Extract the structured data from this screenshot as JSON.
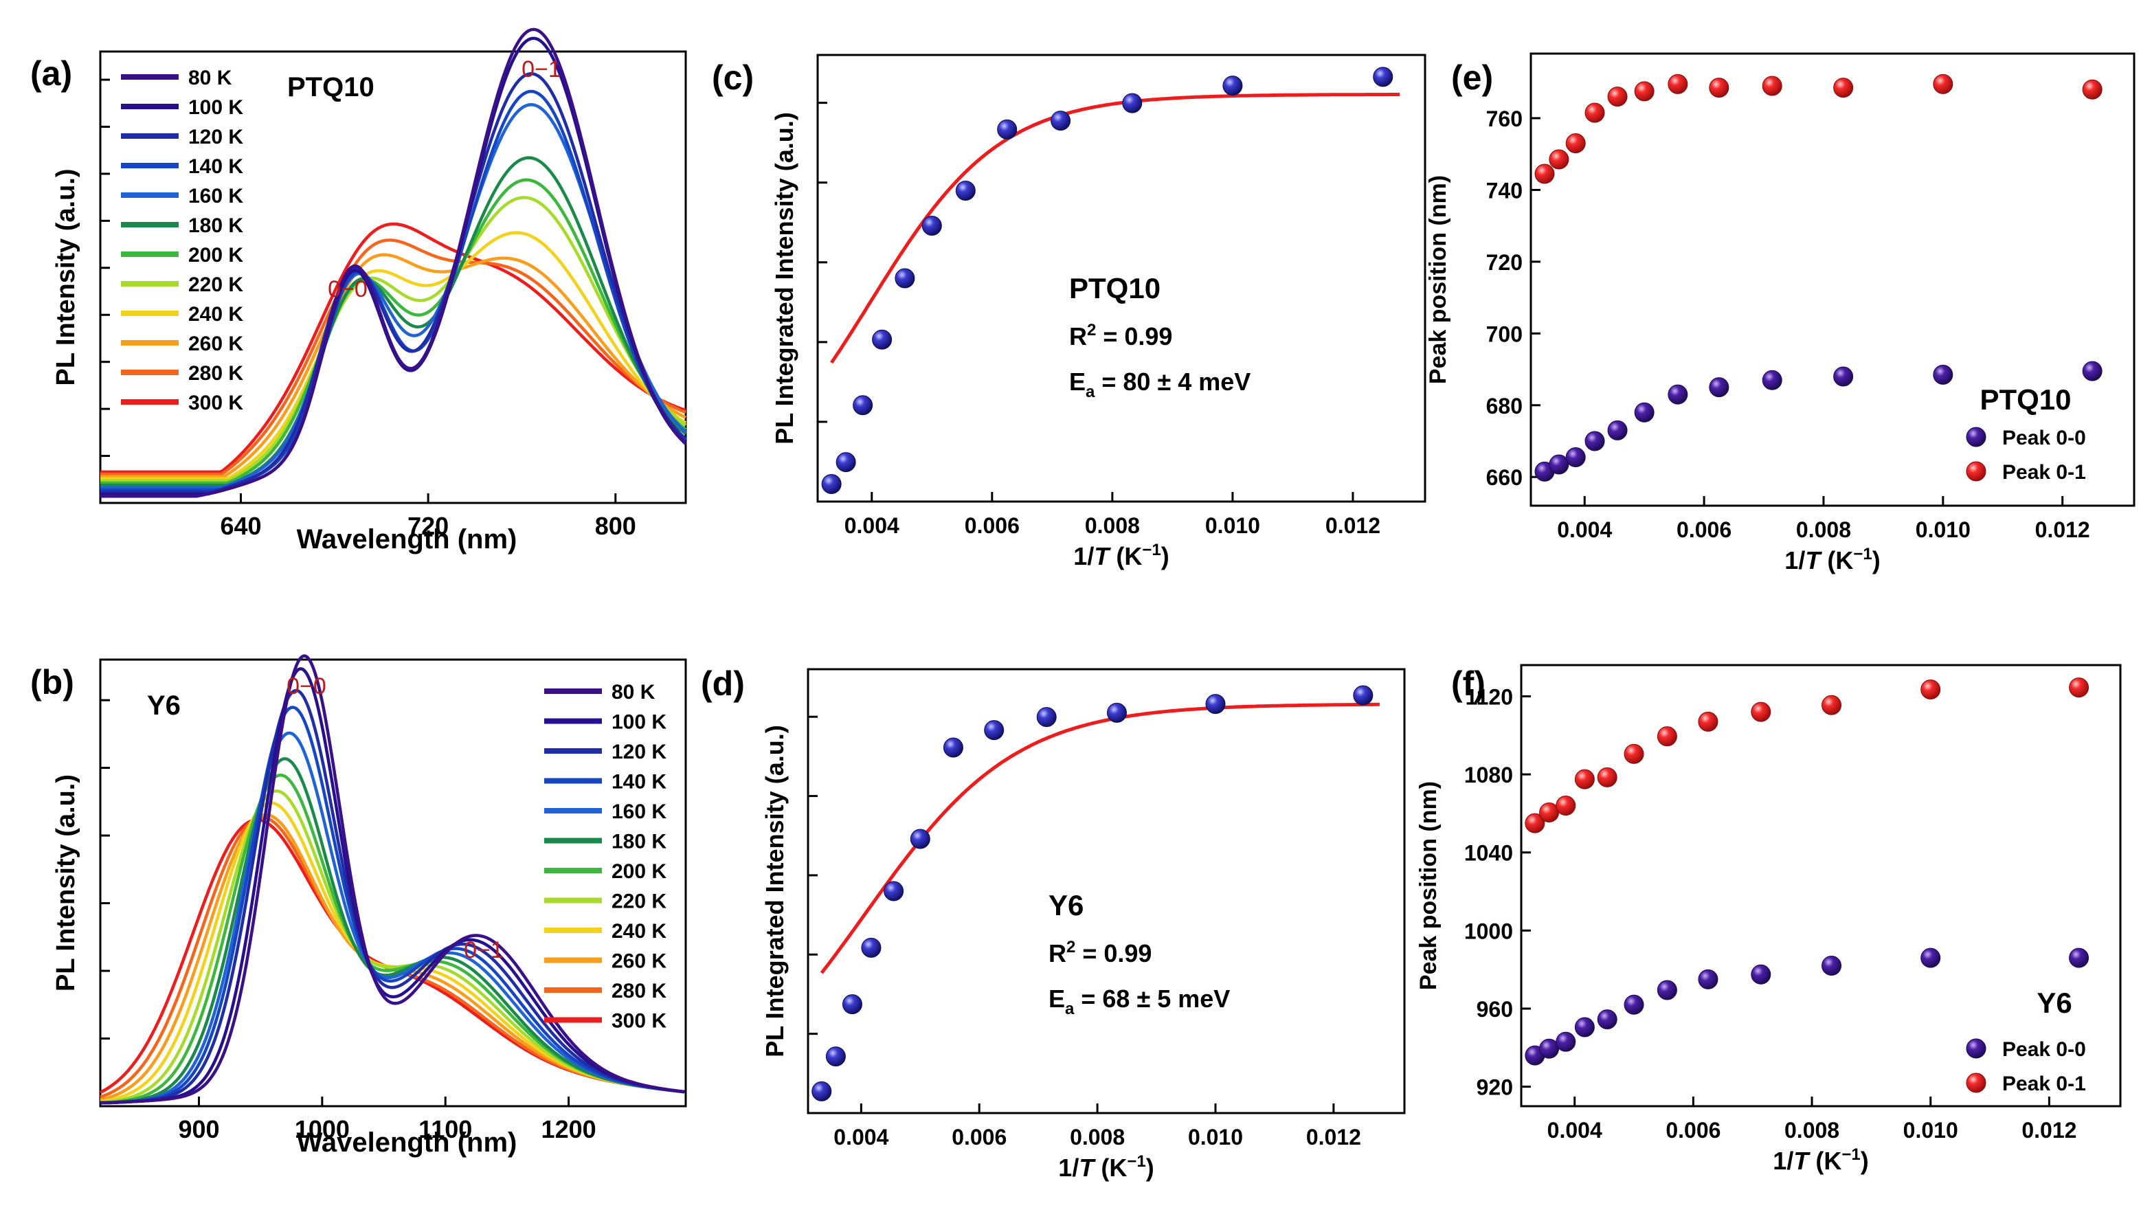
{
  "colors": {
    "fit_line": "#ee1c1c",
    "peak_label": "#c0181c",
    "marker_blue": "#2a2aa8",
    "marker_purple": "#3e1a8c",
    "marker_red": "#ee2222"
  },
  "temperatures": [
    "80 K",
    "100 K",
    "120 K",
    "140 K",
    "160 K",
    "180 K",
    "200 K",
    "220 K",
    "240 K",
    "260 K",
    "280 K",
    "300 K"
  ],
  "temperature_colors": [
    "#3a0f8a",
    "#26108f",
    "#1f2ea8",
    "#1446c6",
    "#1f63d6",
    "#1a8a4a",
    "#3cb83c",
    "#a6db2a",
    "#f2d21a",
    "#f99d1a",
    "#f6651a",
    "#ee1c1c"
  ],
  "chart_data": [
    {
      "panel": "(a)",
      "type": "line",
      "title": "PTQ10",
      "xlabel": "Wavelength (nm)",
      "ylabel": "PL Intensity (a.u.)",
      "xlim": [
        580,
        830
      ],
      "ylim": [
        0,
        1.02
      ],
      "xticks": [
        640,
        720,
        800
      ],
      "peak_labels": [
        "0−0",
        "0−1"
      ],
      "series_model": "sum of gaussians per temperature",
      "series": [
        {
          "name": "80 K",
          "g0_amp": 0.44,
          "g0_center": 688,
          "g0_width": 13,
          "g1_amp": 0.99,
          "g1_center": 765,
          "g1_width": 27,
          "tail_amp": 0.08
        },
        {
          "name": "100 K",
          "g0_amp": 0.43,
          "g0_center": 688,
          "g0_width": 13,
          "g1_amp": 0.97,
          "g1_center": 765,
          "g1_width": 27,
          "tail_amp": 0.08
        },
        {
          "name": "120 K",
          "g0_amp": 0.42,
          "g0_center": 688,
          "g0_width": 14,
          "g1_amp": 0.88,
          "g1_center": 764,
          "g1_width": 28,
          "tail_amp": 0.09
        },
        {
          "name": "140 K",
          "g0_amp": 0.41,
          "g0_center": 689,
          "g0_width": 14,
          "g1_amp": 0.84,
          "g1_center": 764,
          "g1_width": 28,
          "tail_amp": 0.09
        },
        {
          "name": "160 K",
          "g0_amp": 0.39,
          "g0_center": 689,
          "g0_width": 15,
          "g1_amp": 0.8,
          "g1_center": 764,
          "g1_width": 29,
          "tail_amp": 0.1
        },
        {
          "name": "180 K",
          "g0_amp": 0.37,
          "g0_center": 690,
          "g0_width": 16,
          "g1_amp": 0.68,
          "g1_center": 763,
          "g1_width": 30,
          "tail_amp": 0.1
        },
        {
          "name": "200 K",
          "g0_amp": 0.35,
          "g0_center": 690,
          "g0_width": 17,
          "g1_amp": 0.62,
          "g1_center": 762,
          "g1_width": 31,
          "tail_amp": 0.11
        },
        {
          "name": "220 K",
          "g0_amp": 0.33,
          "g0_center": 691,
          "g0_width": 18,
          "g1_amp": 0.57,
          "g1_center": 761,
          "g1_width": 32,
          "tail_amp": 0.12
        },
        {
          "name": "240 K",
          "g0_amp": 0.31,
          "g0_center": 692,
          "g0_width": 19,
          "g1_amp": 0.48,
          "g1_center": 758,
          "g1_width": 34,
          "tail_amp": 0.13
        },
        {
          "name": "260 K",
          "g0_amp": 0.3,
          "g0_center": 693,
          "g0_width": 20,
          "g1_amp": 0.4,
          "g1_center": 754,
          "g1_width": 36,
          "tail_amp": 0.15
        },
        {
          "name": "280 K",
          "g0_amp": 0.29,
          "g0_center": 694,
          "g0_width": 21,
          "g1_amp": 0.36,
          "g1_center": 750,
          "g1_width": 37,
          "tail_amp": 0.17
        },
        {
          "name": "300 K",
          "g0_amp": 0.29,
          "g0_center": 695,
          "g0_width": 22,
          "g1_amp": 0.34,
          "g1_center": 746,
          "g1_width": 38,
          "tail_amp": 0.18
        }
      ]
    },
    {
      "panel": "(b)",
      "type": "line",
      "title": "Y6",
      "xlabel": "Wavelength (nm)",
      "ylabel": "PL Intensity (a.u.)",
      "xlim": [
        820,
        1295
      ],
      "ylim": [
        0,
        1.02
      ],
      "xticks": [
        900,
        1000,
        1100,
        1200
      ],
      "peak_labels": [
        "0−0",
        "0−1"
      ],
      "series_model": "sum of gaussians per temperature",
      "series": [
        {
          "name": "80 K",
          "g0_amp": 0.98,
          "g0_center": 985,
          "g0_width": 30,
          "g1_amp": 0.32,
          "g1_center": 1125,
          "g1_width": 48
        },
        {
          "name": "100 K",
          "g0_amp": 0.95,
          "g0_center": 982,
          "g0_width": 31,
          "g1_amp": 0.31,
          "g1_center": 1120,
          "g1_width": 49
        },
        {
          "name": "120 K",
          "g0_amp": 0.9,
          "g0_center": 978,
          "g0_width": 33,
          "g1_amp": 0.3,
          "g1_center": 1114,
          "g1_width": 50
        },
        {
          "name": "140 K",
          "g0_amp": 0.86,
          "g0_center": 975,
          "g0_width": 34,
          "g1_amp": 0.29,
          "g1_center": 1108,
          "g1_width": 51
        },
        {
          "name": "160 K",
          "g0_amp": 0.8,
          "g0_center": 972,
          "g0_width": 35,
          "g1_amp": 0.28,
          "g1_center": 1103,
          "g1_width": 52
        },
        {
          "name": "180 K",
          "g0_amp": 0.74,
          "g0_center": 968,
          "g0_width": 36,
          "g1_amp": 0.27,
          "g1_center": 1097,
          "g1_width": 53
        },
        {
          "name": "200 K",
          "g0_amp": 0.7,
          "g0_center": 964,
          "g0_width": 38,
          "g1_amp": 0.26,
          "g1_center": 1092,
          "g1_width": 55
        },
        {
          "name": "220 K",
          "g0_amp": 0.66,
          "g0_center": 960,
          "g0_width": 40,
          "g1_amp": 0.25,
          "g1_center": 1086,
          "g1_width": 57
        },
        {
          "name": "240 K",
          "g0_amp": 0.63,
          "g0_center": 955,
          "g0_width": 42,
          "g1_amp": 0.24,
          "g1_center": 1080,
          "g1_width": 59
        },
        {
          "name": "260 K",
          "g0_amp": 0.6,
          "g0_center": 950,
          "g0_width": 44,
          "g1_amp": 0.23,
          "g1_center": 1074,
          "g1_width": 61
        },
        {
          "name": "280 K",
          "g0_amp": 0.59,
          "g0_center": 946,
          "g0_width": 46,
          "g1_amp": 0.22,
          "g1_center": 1068,
          "g1_width": 63
        },
        {
          "name": "300 K",
          "g0_amp": 0.58,
          "g0_center": 941,
          "g0_width": 48,
          "g1_amp": 0.22,
          "g1_center": 1062,
          "g1_width": 65
        }
      ]
    },
    {
      "panel": "(c)",
      "type": "scatter",
      "title": "PTQ10",
      "xlabel_prefix": "1/",
      "xlabel_var": "T",
      "xlabel_unit": " (K",
      "xlabel_exp": "−1",
      "xlabel_close": ")",
      "ylabel": "PL Integrated Intensity (a.u.)",
      "xlim": [
        0.0031,
        0.0132
      ],
      "ylim": [
        0,
        1.02
      ],
      "xticks": [
        0.004,
        0.006,
        0.008,
        0.01,
        0.012
      ],
      "xtick_labels": [
        "0.004",
        "0.006",
        "0.008",
        "0.010",
        "0.012"
      ],
      "x": [
        0.00333,
        0.00357,
        0.00385,
        0.00417,
        0.00455,
        0.005,
        0.00556,
        0.00625,
        0.00714,
        0.00833,
        0.01,
        0.0125
      ],
      "y": [
        0.04,
        0.09,
        0.22,
        0.37,
        0.51,
        0.63,
        0.71,
        0.85,
        0.87,
        0.91,
        0.95,
        0.97
      ],
      "fit": {
        "model": "arrhenius",
        "I0": 0.95,
        "A": 40,
        "Ea_meV": 80
      },
      "r2_label": "R",
      "r2_value": " = 0.99",
      "ea_label": "E",
      "ea_sub": "a",
      "ea_value": " = 80 ± 4 meV"
    },
    {
      "panel": "(d)",
      "type": "scatter",
      "title": "Y6",
      "xlabel_prefix": "1/",
      "xlabel_var": "T",
      "xlabel_unit": " (K",
      "xlabel_exp": "−1",
      "xlabel_close": ")",
      "ylabel": "PL Integrated Intensity (a.u.)",
      "xlim": [
        0.0031,
        0.0132
      ],
      "ylim": [
        0,
        1.02
      ],
      "xticks": [
        0.004,
        0.006,
        0.008,
        0.01,
        0.012
      ],
      "xtick_labels": [
        "0.004",
        "0.006",
        "0.008",
        "0.010",
        "0.012"
      ],
      "x": [
        0.00333,
        0.00357,
        0.00385,
        0.00417,
        0.00455,
        0.005,
        0.00556,
        0.00625,
        0.00714,
        0.00833,
        0.01,
        0.0125
      ],
      "y": [
        0.05,
        0.13,
        0.25,
        0.38,
        0.51,
        0.63,
        0.84,
        0.88,
        0.91,
        0.92,
        0.94,
        0.96
      ],
      "fit": {
        "model": "arrhenius",
        "I0": 0.96,
        "A": 25,
        "Ea_meV": 68
      },
      "r2_label": "R",
      "r2_value": " = 0.99",
      "ea_label": "E",
      "ea_sub": "a",
      "ea_value": " = 68 ± 5 meV"
    },
    {
      "panel": "(e)",
      "type": "scatter",
      "title": "PTQ10",
      "xlabel_prefix": "1/",
      "xlabel_var": "T",
      "xlabel_unit": " (K",
      "xlabel_exp": "−1",
      "xlabel_close": ")",
      "ylabel": "Peak position (nm)",
      "xlim": [
        0.0031,
        0.0132
      ],
      "ylim": [
        652,
        778
      ],
      "yticks": [
        660,
        680,
        700,
        720,
        740,
        760
      ],
      "xticks": [
        0.004,
        0.006,
        0.008,
        0.01,
        0.012
      ],
      "xtick_labels": [
        "0.004",
        "0.006",
        "0.008",
        "0.010",
        "0.012"
      ],
      "x": [
        0.00333,
        0.00357,
        0.00385,
        0.00417,
        0.00455,
        0.005,
        0.00556,
        0.00625,
        0.00714,
        0.00833,
        0.01,
        0.0125
      ],
      "series": [
        {
          "name": "Peak 0-0",
          "color_key": "marker_purple",
          "values": [
            661.5,
            663.5,
            665.5,
            670,
            673,
            678,
            683,
            685,
            687,
            688,
            688.5,
            689.5
          ]
        },
        {
          "name": "Peak 0-1",
          "color_key": "marker_red",
          "values": [
            744.5,
            748.5,
            753,
            761.5,
            766,
            767.5,
            769.5,
            768.5,
            769,
            768.5,
            769.5,
            768
          ]
        }
      ]
    },
    {
      "panel": "(f)",
      "type": "scatter",
      "title": "Y6",
      "xlabel_prefix": "1/",
      "xlabel_var": "T",
      "xlabel_unit": " (K",
      "xlabel_exp": "−1",
      "xlabel_close": ")",
      "ylabel": "Peak position (nm)",
      "xlim": [
        0.0031,
        0.0132
      ],
      "ylim": [
        910,
        1136
      ],
      "yticks": [
        920,
        960,
        1000,
        1040,
        1080,
        1120
      ],
      "xticks": [
        0.004,
        0.006,
        0.008,
        0.01,
        0.012
      ],
      "xtick_labels": [
        "0.004",
        "0.006",
        "0.008",
        "0.010",
        "0.012"
      ],
      "x": [
        0.00333,
        0.00357,
        0.00385,
        0.00417,
        0.00455,
        0.005,
        0.00556,
        0.00625,
        0.00714,
        0.00833,
        0.01,
        0.0125
      ],
      "series": [
        {
          "name": "Peak 0-0",
          "color_key": "marker_purple",
          "values": [
            936,
            939.5,
            943,
            950.5,
            954.5,
            962,
            969.5,
            975,
            977.5,
            982,
            986,
            986
          ]
        },
        {
          "name": "Peak 0-1",
          "color_key": "marker_red",
          "values": [
            1055,
            1060.5,
            1064,
            1077.5,
            1078.5,
            1090.5,
            1099.5,
            1107,
            1112,
            1115.5,
            1123.5,
            1124.5
          ]
        }
      ]
    }
  ]
}
